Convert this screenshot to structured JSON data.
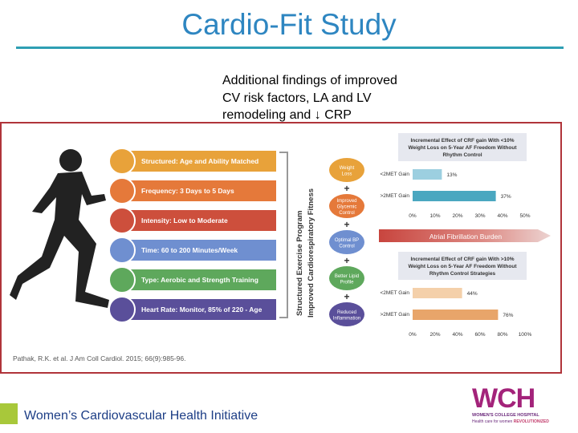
{
  "title": "Cardio-Fit Study",
  "findings": [
    "Additional findings of improved",
    "CV risk factors, LA and LV",
    "remodeling and ↓ CRP"
  ],
  "program": {
    "items": [
      {
        "label": "Structured: Age and Ability Matched",
        "color": "#e8a23a"
      },
      {
        "label": "Frequency: 3 Days to 5 Days",
        "color": "#e5793a"
      },
      {
        "label": "Intensity: Low to Moderate",
        "color": "#cd4f3c"
      },
      {
        "label": "Time: 60 to 200 Minutes/Week",
        "color": "#6f8fd0"
      },
      {
        "label": "Type: Aerobic and Strength Training",
        "color": "#5ea85c"
      },
      {
        "label": "Heart Rate: Monitor, 85% of 220 - Age",
        "color": "#5a4f9a"
      }
    ],
    "vertical_label_1": "Structured Exercise Program",
    "vertical_label_2": "Improved Cardiorespiratory Fitness"
  },
  "benefits": [
    {
      "lines": [
        "Weight",
        "Loss"
      ],
      "color": "#e8a23a"
    },
    {
      "lines": [
        "Improved",
        "Glycemic",
        "Control"
      ],
      "color": "#e5793a"
    },
    {
      "lines": [
        "Optimal BP",
        "Control"
      ],
      "color": "#6f8fd0"
    },
    {
      "lines": [
        "Better Lipid",
        "Profile"
      ],
      "color": "#5ea85c"
    },
    {
      "lines": [
        "Reduced",
        "Inflammation"
      ],
      "color": "#5a4f9a"
    }
  ],
  "plus_sign": "+",
  "arrow_label": "Atrial Fibrillation Burden",
  "citation": "Pathak, R.K. et al.  J Am Coll Cardiol. 2015; 66(9):985-96.",
  "footer": "Women’s Cardiovascular Health Initiative",
  "logo": {
    "letters": "WCH",
    "line1": "WOMEN'S COLLEGE HOSPITAL",
    "line2a": "Health care for women ",
    "line2b": "REVOLUTIONIZED"
  },
  "chart_data": [
    {
      "type": "bar",
      "orientation": "horizontal",
      "title": "Incremental Effect of CRF gain With <10% Weight Loss on 5-Year AF Freedom Without Rhythm Control",
      "categories": [
        "<2MET Gain",
        ">2MET Gain"
      ],
      "values": [
        13,
        37
      ],
      "data_labels": [
        "13%",
        "37%"
      ],
      "xlim": [
        0,
        50
      ],
      "ticks": [
        "0%",
        "10%",
        "20%",
        "30%",
        "40%",
        "50%"
      ],
      "color": "#4aa7c0",
      "color_light": "#9ccfe0"
    },
    {
      "type": "bar",
      "orientation": "horizontal",
      "title": "Incremental Effect of CRF gain With >10% Weight Loss on 5-Year AF Freedom Without Rhythm Control Strategies",
      "categories": [
        "<2MET Gain",
        ">2MET Gain"
      ],
      "values": [
        44,
        76
      ],
      "data_labels": [
        "44%",
        "76%"
      ],
      "xlim": [
        0,
        100
      ],
      "ticks": [
        "0%",
        "20%",
        "40%",
        "60%",
        "80%",
        "100%"
      ],
      "color": "#e8a56a",
      "color_light": "#f4d0aa"
    }
  ]
}
